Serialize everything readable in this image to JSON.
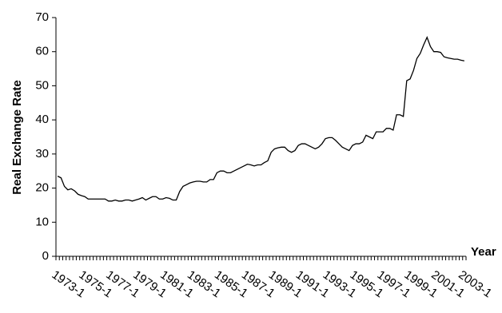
{
  "chart_data": {
    "type": "line",
    "y_label": "Real Exchange Rate",
    "x_label": "Year",
    "categories": [
      "1973-1",
      null,
      null,
      null,
      null,
      null,
      null,
      null,
      "1975-1",
      null,
      null,
      null,
      null,
      null,
      null,
      null,
      "1977-1",
      null,
      null,
      null,
      null,
      null,
      null,
      null,
      "1979-1",
      null,
      null,
      null,
      null,
      null,
      null,
      null,
      "1981-1",
      null,
      null,
      null,
      null,
      null,
      null,
      null,
      "1983-1",
      null,
      null,
      null,
      null,
      null,
      null,
      null,
      "1985-1",
      null,
      null,
      null,
      null,
      null,
      null,
      null,
      "1987-1",
      null,
      null,
      null,
      null,
      null,
      null,
      null,
      "1989-1",
      null,
      null,
      null,
      null,
      null,
      null,
      null,
      "1991-1",
      null,
      null,
      null,
      null,
      null,
      null,
      null,
      "1993-1",
      null,
      null,
      null,
      null,
      null,
      null,
      null,
      "1995-1",
      null,
      null,
      null,
      null,
      null,
      null,
      null,
      "1997-1",
      null,
      null,
      null,
      null,
      null,
      null,
      null,
      "1999-1",
      null,
      null,
      null,
      null,
      null,
      null,
      null,
      "2001-1",
      null,
      null,
      null,
      null,
      null,
      null,
      null,
      "2003-1"
    ],
    "values": [
      23.5,
      23,
      20.5,
      19.5,
      19.8,
      19.2,
      18.2,
      17.8,
      17.5,
      16.8,
      16.8,
      16.8,
      16.8,
      16.8,
      16.8,
      16.2,
      16.2,
      16.5,
      16.2,
      16.2,
      16.5,
      16.5,
      16.2,
      16.5,
      16.8,
      17.2,
      16.5,
      17,
      17.5,
      17.5,
      16.8,
      16.8,
      17.2,
      17,
      16.5,
      16.5,
      19,
      20.5,
      21,
      21.5,
      21.8,
      22,
      22,
      21.8,
      21.8,
      22.5,
      22.5,
      24.5,
      25,
      25,
      24.5,
      24.5,
      25,
      25.5,
      26,
      26.5,
      27,
      26.8,
      26.5,
      26.8,
      26.8,
      27.5,
      28,
      30.5,
      31.5,
      31.8,
      32,
      32,
      31,
      30.5,
      31,
      32.5,
      33,
      33,
      32.5,
      32,
      31.5,
      32,
      33,
      34.5,
      34.8,
      34.8,
      34,
      33,
      32,
      31.5,
      31,
      32.5,
      33,
      33,
      33.5,
      35.5,
      35,
      34.5,
      36.5,
      36.5,
      36.5,
      37.5,
      37.5,
      37,
      41.5,
      41.5,
      41,
      51.5,
      52,
      54.5,
      58,
      59.5,
      62,
      64.2,
      61.5,
      60,
      60,
      59.8,
      58.5,
      58.2,
      58,
      57.8,
      57.8,
      57.5,
      57.3
    ],
    "color": "#000000",
    "ylim": [
      0,
      70
    ],
    "yticks": [
      0,
      10,
      20,
      30,
      40,
      50,
      60,
      70
    ]
  }
}
